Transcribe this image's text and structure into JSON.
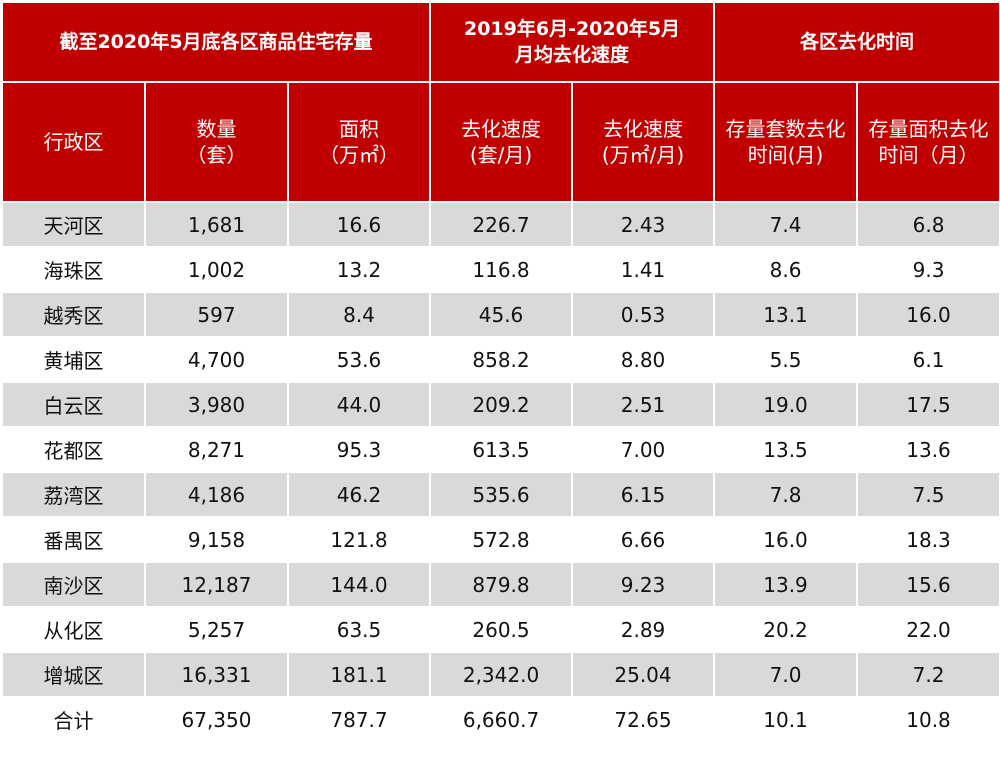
{
  "header_groups": {
    "stock": "截至2020年5月底各区商品住宅存量",
    "speed_line1": "2019年6月-2020年5月",
    "speed_line2": "月均去化速度",
    "time": "各区去化时间"
  },
  "columns": {
    "district": "行政区",
    "count_line1": "数量",
    "count_line2": "（套）",
    "area_line1": "面积",
    "area_line2": "（万㎡）",
    "speed_units_line1": "去化速度",
    "speed_units_line2": "(套/月)",
    "speed_area_line1": "去化速度",
    "speed_area_line2": "(万㎡/月)",
    "time_units_line1": "存量套数去化",
    "time_units_line2": "时间(月)",
    "time_area_line1": "存量面积去化",
    "time_area_line2": "时间（月）"
  },
  "rows": [
    [
      "天河区",
      "1,681",
      "16.6",
      "226.7",
      "2.43",
      "7.4",
      "6.8"
    ],
    [
      "海珠区",
      "1,002",
      "13.2",
      "116.8",
      "1.41",
      "8.6",
      "9.3"
    ],
    [
      "越秀区",
      "597",
      "8.4",
      "45.6",
      "0.53",
      "13.1",
      "16.0"
    ],
    [
      "黄埔区",
      "4,700",
      "53.6",
      "858.2",
      "8.80",
      "5.5",
      "6.1"
    ],
    [
      "白云区",
      "3,980",
      "44.0",
      "209.2",
      "2.51",
      "19.0",
      "17.5"
    ],
    [
      "花都区",
      "8,271",
      "95.3",
      "613.5",
      "7.00",
      "13.5",
      "13.6"
    ],
    [
      "荔湾区",
      "4,186",
      "46.2",
      "535.6",
      "6.15",
      "7.8",
      "7.5"
    ],
    [
      "番禺区",
      "9,158",
      "121.8",
      "572.8",
      "6.66",
      "16.0",
      "18.3"
    ],
    [
      "南沙区",
      "12,187",
      "144.0",
      "879.8",
      "9.23",
      "13.9",
      "15.6"
    ],
    [
      "从化区",
      "5,257",
      "63.5",
      "260.5",
      "2.89",
      "20.2",
      "22.0"
    ],
    [
      "增城区",
      "16,331",
      "181.1",
      "2,342.0",
      "25.04",
      "7.0",
      "7.2"
    ],
    [
      "合计",
      "67,350",
      "787.7",
      "6,660.7",
      "72.65",
      "10.1",
      "10.8"
    ]
  ]
}
